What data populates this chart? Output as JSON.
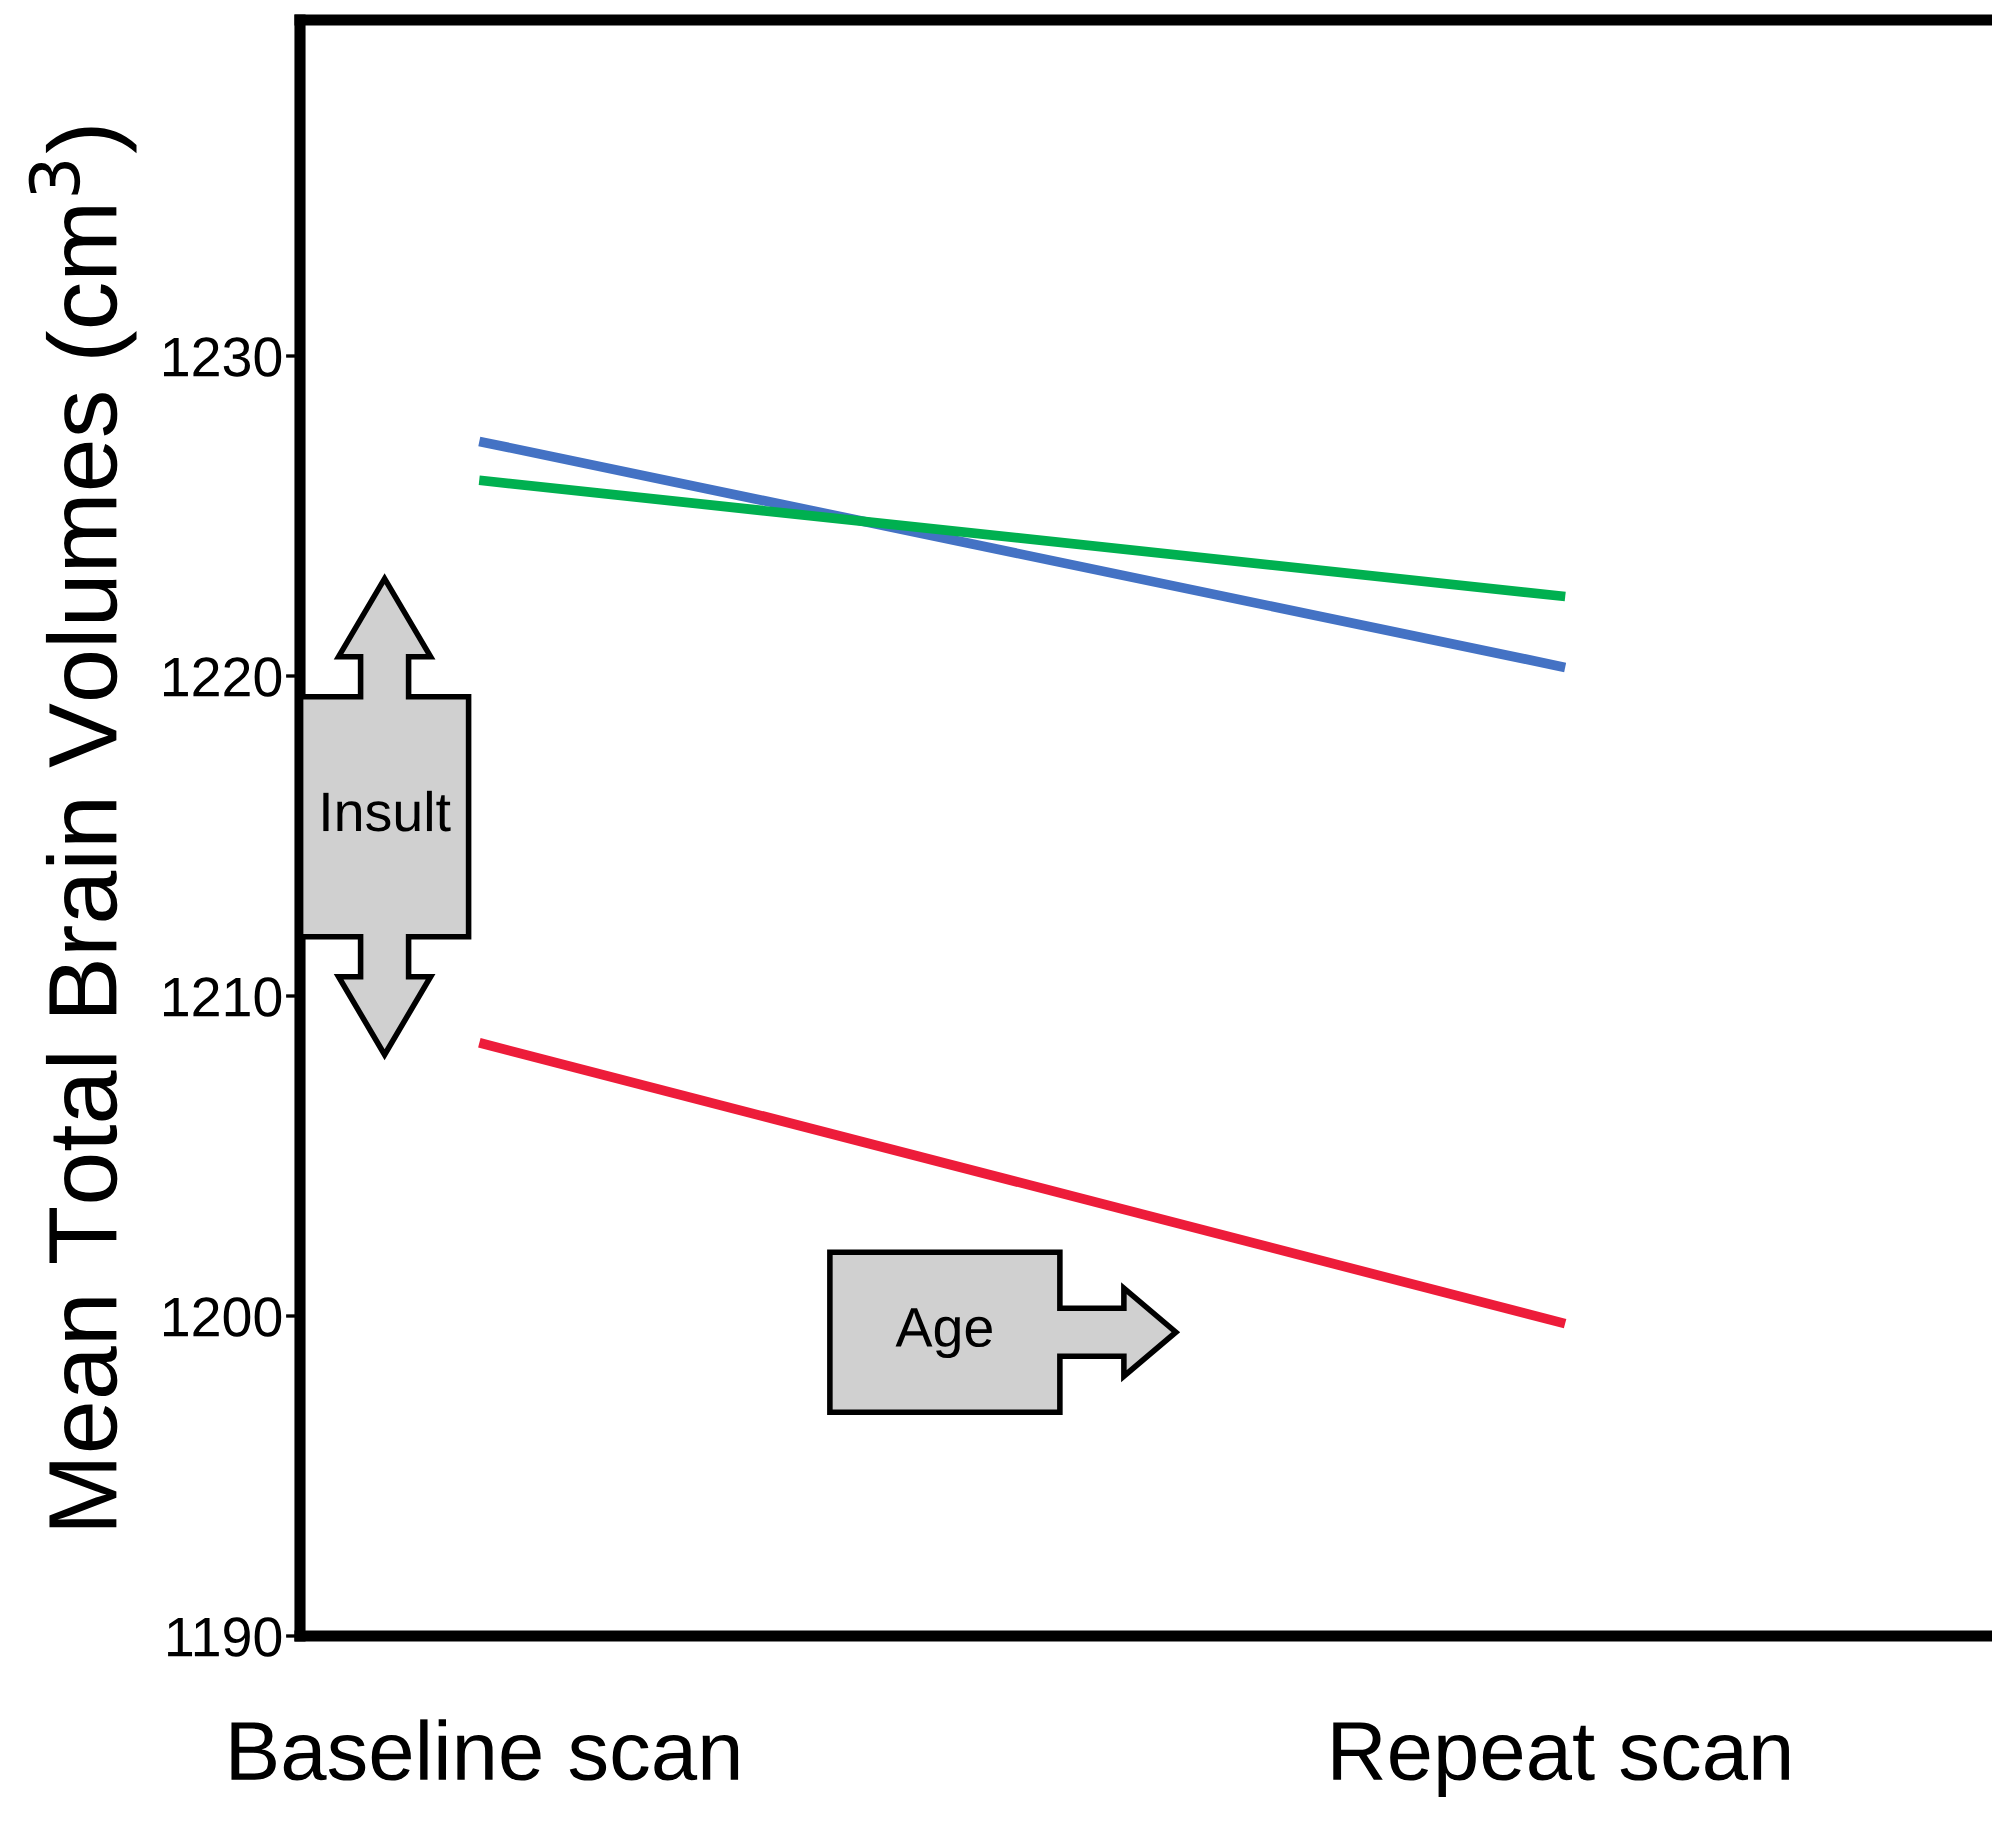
{
  "chart_data": {
    "type": "line",
    "ylabel": "Mean Total Brain Volumes (cm$^{3}$)",
    "categories": [
      "Baseline scan",
      "Repeat scan"
    ],
    "ylim": [
      1190,
      1240.5
    ],
    "yticks": [
      1190,
      1200,
      1210,
      1220,
      1230
    ],
    "series": [
      {
        "color": "#4472c4",
        "values": [
          1227.3,
          1220.3
        ]
      },
      {
        "color": "#00b050",
        "values": [
          1226.1,
          1222.5
        ]
      },
      {
        "color": "#ed1c3a",
        "values": [
          1208.5,
          1199.8
        ]
      }
    ],
    "annotations": [
      "Insult",
      "Age"
    ],
    "grid": false,
    "marker": "none",
    "line_style": "solid"
  }
}
